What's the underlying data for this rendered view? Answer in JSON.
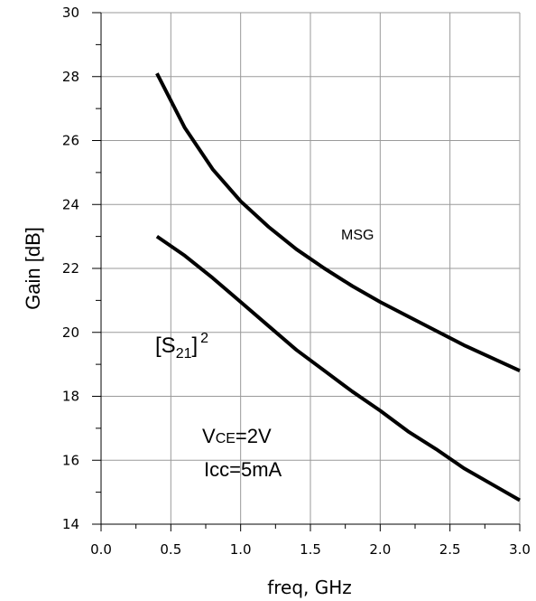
{
  "chart_data": {
    "type": "line",
    "xlabel": "freq, GHz",
    "ylabel": "Gain [dB]",
    "xlim": [
      0.0,
      3.0
    ],
    "ylim": [
      14,
      30
    ],
    "x_ticks": [
      "0.0",
      "0.5",
      "1.0",
      "1.5",
      "2.0",
      "2.5",
      "3.0"
    ],
    "y_ticks": [
      "14",
      "16",
      "18",
      "20",
      "22",
      "24",
      "26",
      "28",
      "30"
    ],
    "grid": true,
    "line_color": "#000000",
    "grid_color": "#9a9a9a",
    "series": [
      {
        "name": "MSG",
        "x": [
          0.4,
          0.6,
          0.8,
          1.0,
          1.2,
          1.4,
          1.6,
          1.8,
          2.0,
          2.2,
          2.4,
          2.6,
          2.8,
          3.0
        ],
        "y": [
          28.1,
          26.4,
          25.1,
          24.1,
          23.3,
          22.6,
          22.0,
          21.45,
          20.95,
          20.5,
          20.05,
          19.6,
          19.2,
          18.8
        ]
      },
      {
        "name": "",
        "x": [
          0.4,
          0.6,
          0.8,
          1.0,
          1.2,
          1.4,
          1.6,
          1.8,
          2.0,
          2.2,
          2.4,
          2.6,
          2.8,
          3.0
        ],
        "y": [
          23.0,
          22.4,
          21.7,
          20.95,
          20.2,
          19.45,
          18.8,
          18.15,
          17.55,
          16.9,
          16.35,
          15.75,
          15.25,
          14.75
        ]
      }
    ],
    "annotations": {
      "msg_label": "MSG",
      "s21_open": "[S",
      "s21_sub": "21",
      "s21_close": "]",
      "s21_sup": "2",
      "vce_main": "V",
      "vce_sub": "CE",
      "vce_rest": "=2V",
      "icc": "Icc=5mA"
    }
  }
}
